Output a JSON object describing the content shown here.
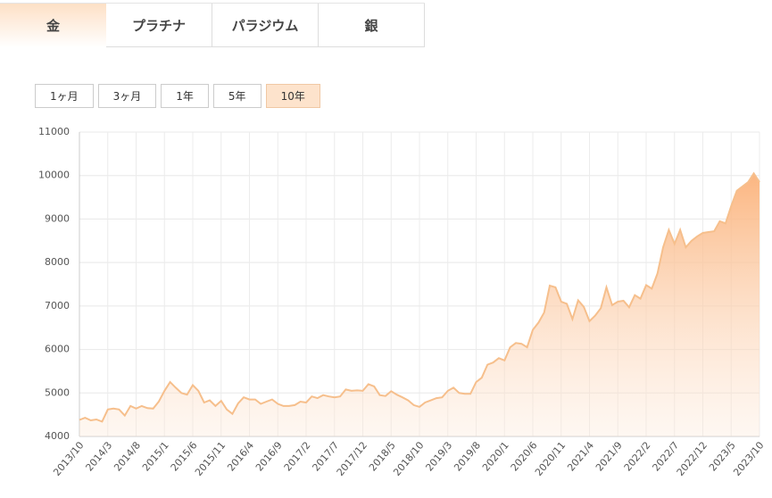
{
  "tabs": [
    {
      "label": "金",
      "active": true
    },
    {
      "label": "プラチナ"
    },
    {
      "label": "パラジウム"
    },
    {
      "label": "銀"
    }
  ],
  "range_buttons": [
    {
      "label": "1ヶ月"
    },
    {
      "label": "3ヶ月"
    },
    {
      "label": "1年"
    },
    {
      "label": "5年"
    },
    {
      "label": "10年",
      "active": true
    }
  ],
  "chart_data": {
    "type": "area",
    "color": "#f6bf8c",
    "fill": "#fbb27a",
    "grid": true,
    "ylim": [
      4000,
      11000
    ],
    "yticks": [
      4000,
      5000,
      6000,
      7000,
      8000,
      9000,
      10000,
      11000
    ],
    "categories": [
      "2013/10",
      null,
      null,
      null,
      null,
      "2014/3",
      null,
      null,
      null,
      null,
      "2014/8",
      null,
      null,
      null,
      null,
      "2015/1",
      null,
      null,
      null,
      null,
      "2015/6",
      null,
      null,
      null,
      null,
      "2015/11",
      null,
      null,
      null,
      null,
      "2016/4",
      null,
      null,
      null,
      null,
      "2016/9",
      null,
      null,
      null,
      null,
      "2017/2",
      null,
      null,
      null,
      null,
      "2017/7",
      null,
      null,
      null,
      null,
      "2017/12",
      null,
      null,
      null,
      null,
      "2018/5",
      null,
      null,
      null,
      null,
      "2018/10",
      null,
      null,
      null,
      null,
      "2019/3",
      null,
      null,
      null,
      null,
      "2019/8",
      null,
      null,
      null,
      null,
      "2020/1",
      null,
      null,
      null,
      null,
      "2020/6",
      null,
      null,
      null,
      null,
      "2020/11",
      null,
      null,
      null,
      null,
      "2021/4",
      null,
      null,
      null,
      null,
      "2021/9",
      null,
      null,
      null,
      null,
      "2022/2",
      null,
      null,
      null,
      null,
      "2022/7",
      null,
      null,
      null,
      null,
      "2022/12",
      null,
      null,
      null,
      null,
      "2023/5",
      null,
      null,
      null,
      null,
      "2023/10"
    ],
    "values": [
      4380,
      4430,
      4370,
      4390,
      4340,
      4620,
      4640,
      4620,
      4480,
      4700,
      4640,
      4700,
      4650,
      4640,
      4800,
      5050,
      5250,
      5120,
      5000,
      4960,
      5180,
      5050,
      4780,
      4830,
      4700,
      4820,
      4620,
      4520,
      4760,
      4900,
      4850,
      4850,
      4750,
      4800,
      4850,
      4750,
      4700,
      4700,
      4720,
      4800,
      4780,
      4920,
      4880,
      4950,
      4920,
      4900,
      4920,
      5080,
      5050,
      5060,
      5050,
      5200,
      5150,
      4950,
      4930,
      5040,
      4960,
      4900,
      4830,
      4720,
      4680,
      4780,
      4830,
      4880,
      4900,
      5050,
      5120,
      5000,
      4980,
      4980,
      5250,
      5350,
      5650,
      5700,
      5800,
      5750,
      6050,
      6150,
      6130,
      6050,
      6450,
      6620,
      6850,
      7470,
      7430,
      7100,
      7050,
      6700,
      7130,
      6980,
      6650,
      6780,
      6950,
      7430,
      7020,
      7100,
      7120,
      6970,
      7250,
      7170,
      7480,
      7400,
      7750,
      8350,
      8750,
      8430,
      8750,
      8350,
      8500,
      8600,
      8680,
      8700,
      8720,
      8950,
      8900,
      9300,
      9650,
      9750,
      9850,
      10050,
      9850
    ]
  }
}
